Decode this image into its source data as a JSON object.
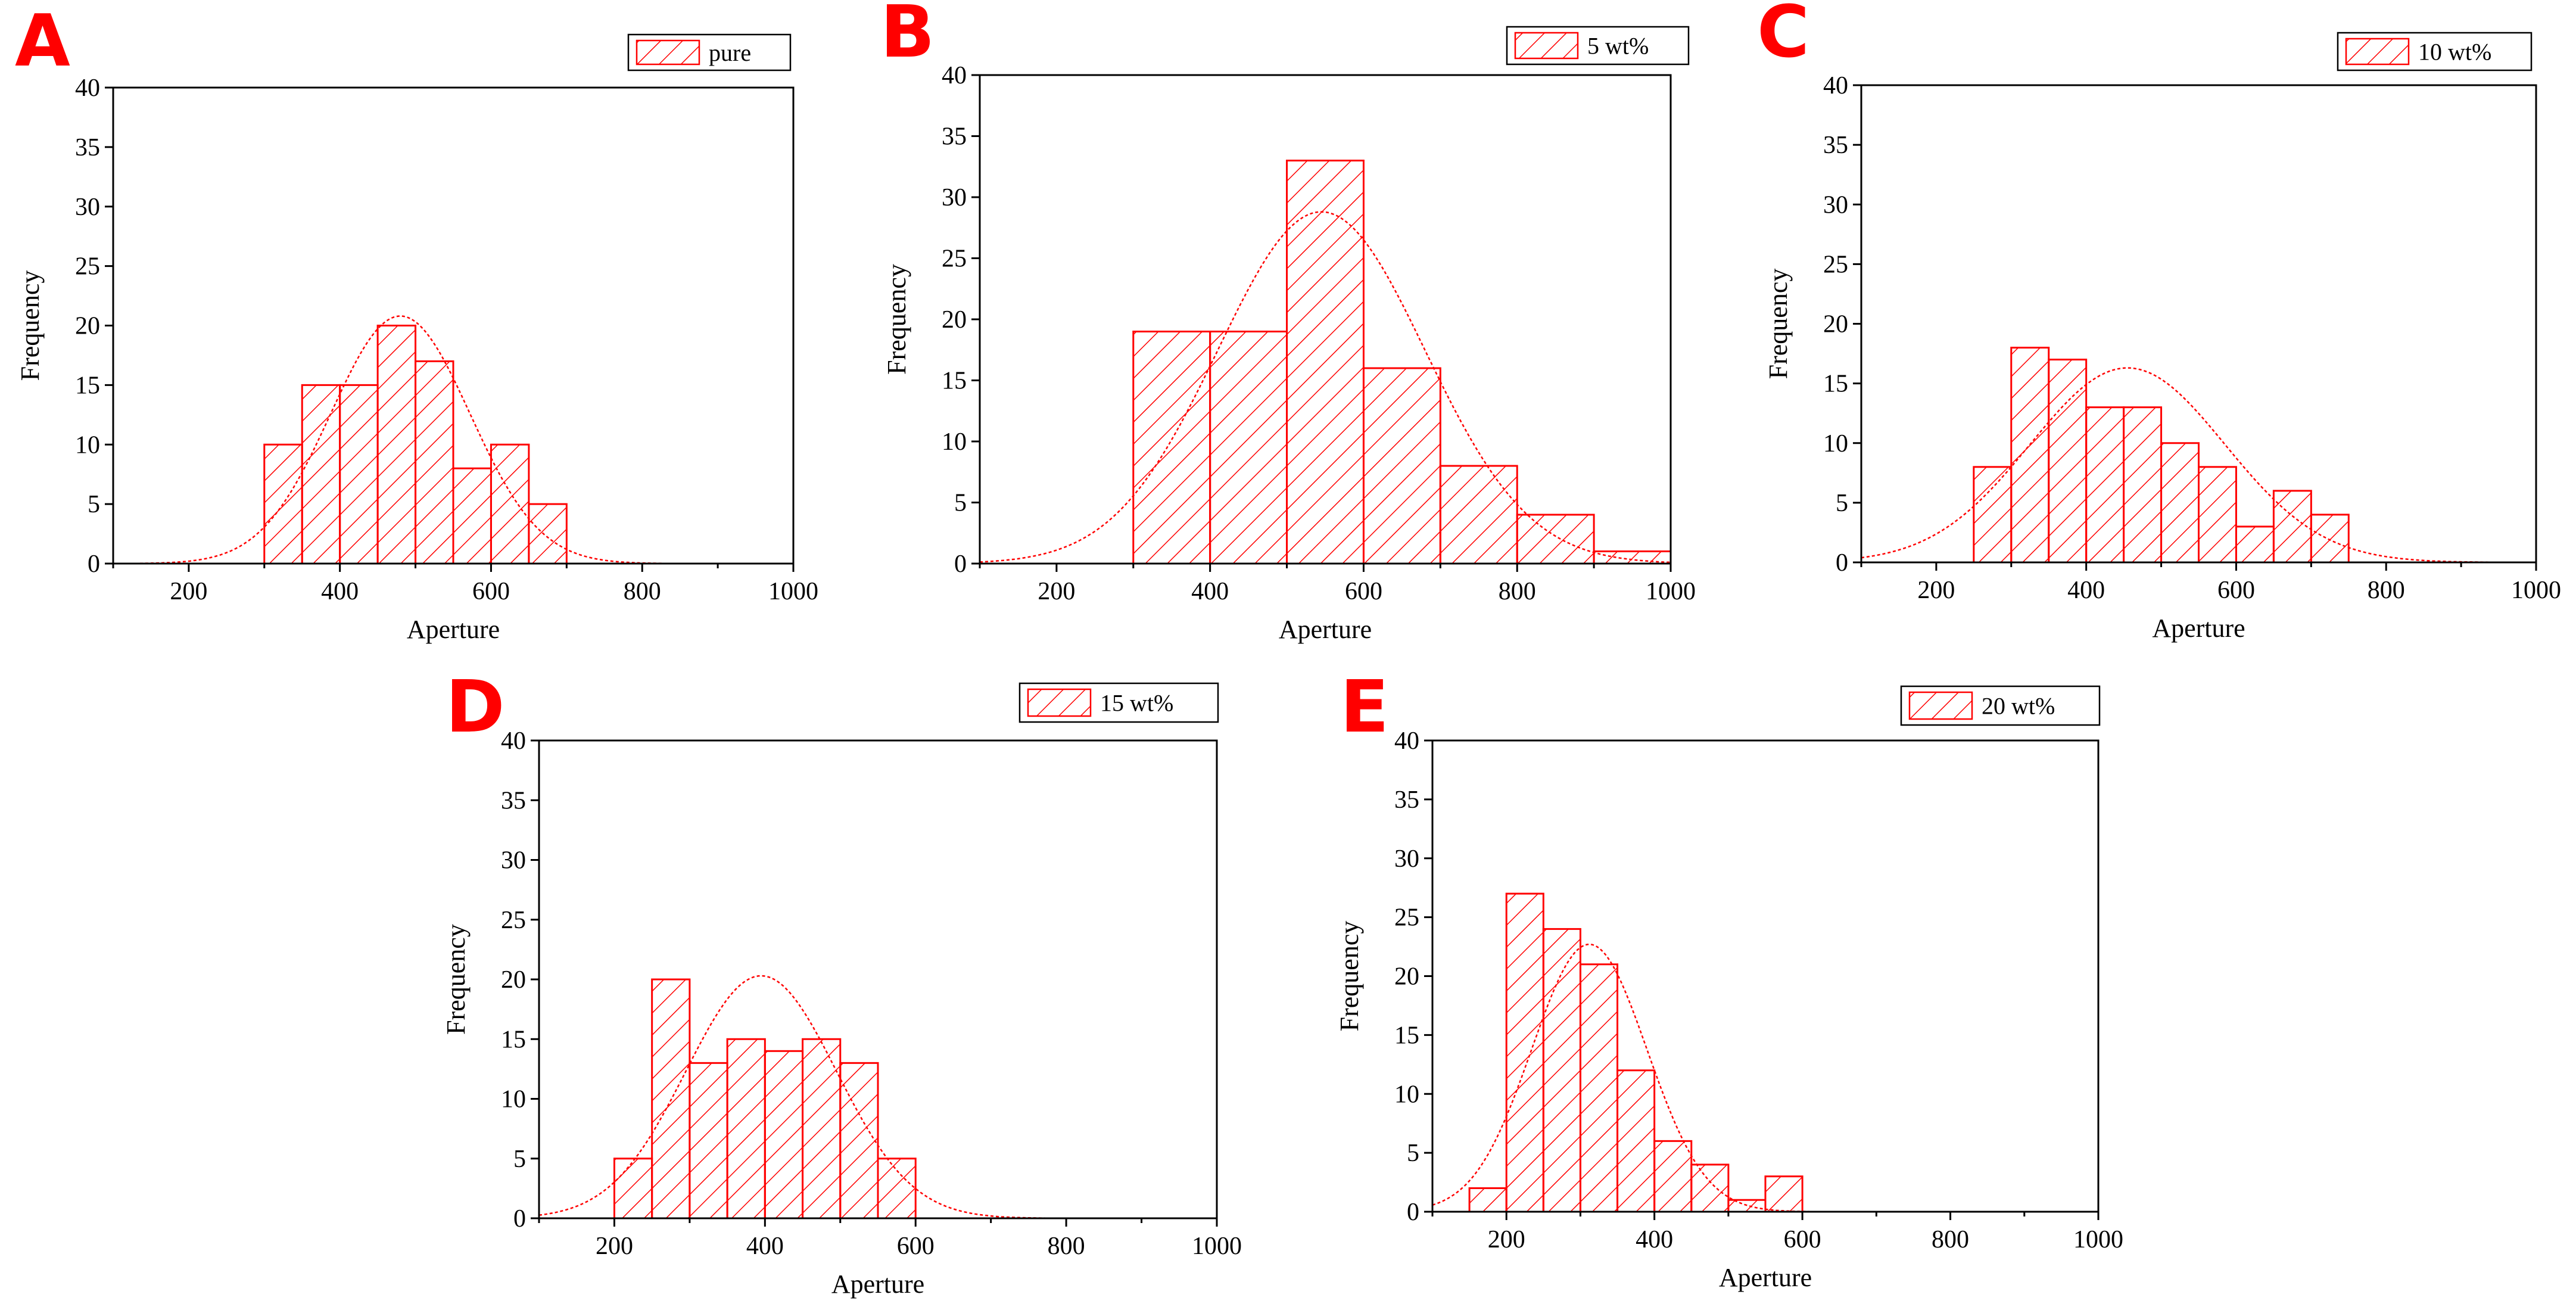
{
  "figure": {
    "background": "#ffffff",
    "accent_color": "#ff0000",
    "fit_color": "#ff0000"
  },
  "chart_data": [
    {
      "panel": "A",
      "type": "bar",
      "subtype": "histogram-with-normal-fit",
      "legend": "pure",
      "legend_position": "top-right",
      "xlabel": "Aperture",
      "ylabel": "Frequency",
      "xlim": [
        100,
        1000
      ],
      "ylim": [
        0,
        40
      ],
      "xticks": [
        200,
        400,
        600,
        800,
        1000
      ],
      "yticks": [
        0,
        5,
        10,
        15,
        20,
        25,
        30,
        35,
        40
      ],
      "bin_edges": [
        300,
        350,
        400,
        450,
        500,
        550,
        600,
        650,
        700
      ],
      "values": [
        10,
        15,
        15,
        20,
        17,
        8,
        10,
        5
      ],
      "fit": {
        "type": "normal",
        "peak": 20.8,
        "center": 480,
        "sd": 92
      },
      "grid": false
    },
    {
      "panel": "B",
      "type": "bar",
      "subtype": "histogram-with-normal-fit",
      "legend": "5 wt%",
      "legend_position": "top-right",
      "xlabel": "Aperture",
      "ylabel": "Frequency",
      "xlim": [
        100,
        1000
      ],
      "ylim": [
        0,
        40
      ],
      "xticks": [
        200,
        400,
        600,
        800,
        1000
      ],
      "yticks": [
        0,
        5,
        10,
        15,
        20,
        25,
        30,
        35,
        40
      ],
      "bin_edges": [
        300,
        400,
        500,
        600,
        700,
        800,
        900,
        1000
      ],
      "values": [
        19,
        19,
        33,
        16,
        8,
        4,
        1
      ],
      "fit": {
        "type": "normal",
        "peak": 28.8,
        "center": 545,
        "sd": 135
      },
      "grid": false
    },
    {
      "panel": "C",
      "type": "bar",
      "subtype": "histogram-with-normal-fit",
      "legend": "10 wt%",
      "legend_position": "top-right",
      "xlabel": "Aperture",
      "ylabel": "Frequency",
      "xlim": [
        100,
        1000
      ],
      "ylim": [
        0,
        40
      ],
      "xticks": [
        200,
        400,
        600,
        800,
        1000
      ],
      "yticks": [
        0,
        5,
        10,
        15,
        20,
        25,
        30,
        35,
        40
      ],
      "bin_edges": [
        250,
        300,
        350,
        400,
        450,
        500,
        550,
        600,
        650,
        700,
        750
      ],
      "values": [
        8,
        18,
        17,
        13,
        13,
        10,
        8,
        3,
        6,
        4
      ],
      "fit": {
        "type": "normal",
        "peak": 16.3,
        "center": 455,
        "sd": 130
      },
      "grid": false
    },
    {
      "panel": "D",
      "type": "bar",
      "subtype": "histogram-with-normal-fit",
      "legend": "15 wt%",
      "legend_position": "top-right",
      "xlabel": "Aperture",
      "ylabel": "Frequency",
      "xlim": [
        100,
        1000
      ],
      "ylim": [
        0,
        40
      ],
      "xticks": [
        200,
        400,
        600,
        800,
        1000
      ],
      "yticks": [
        0,
        5,
        10,
        15,
        20,
        25,
        30,
        35,
        40
      ],
      "bin_edges": [
        200,
        250,
        300,
        350,
        400,
        450,
        500,
        550,
        600
      ],
      "values": [
        5,
        20,
        13,
        15,
        14,
        15,
        13,
        5
      ],
      "fit": {
        "type": "normal",
        "peak": 20.3,
        "center": 395,
        "sd": 100
      },
      "grid": false
    },
    {
      "panel": "E",
      "type": "bar",
      "subtype": "histogram-with-normal-fit",
      "legend": "20 wt%",
      "legend_position": "top-right",
      "xlabel": "Aperture",
      "ylabel": "Frequency",
      "xlim": [
        100,
        1000
      ],
      "ylim": [
        0,
        40
      ],
      "xticks": [
        200,
        400,
        600,
        800,
        1000
      ],
      "yticks": [
        0,
        5,
        10,
        15,
        20,
        25,
        30,
        35,
        40
      ],
      "bin_edges": [
        150,
        200,
        250,
        300,
        350,
        400,
        450,
        500,
        550,
        600
      ],
      "values": [
        2,
        27,
        24,
        21,
        12,
        6,
        4,
        1,
        3
      ],
      "fit": {
        "type": "normal",
        "peak": 22.7,
        "center": 312,
        "sd": 78
      },
      "grid": false
    }
  ]
}
